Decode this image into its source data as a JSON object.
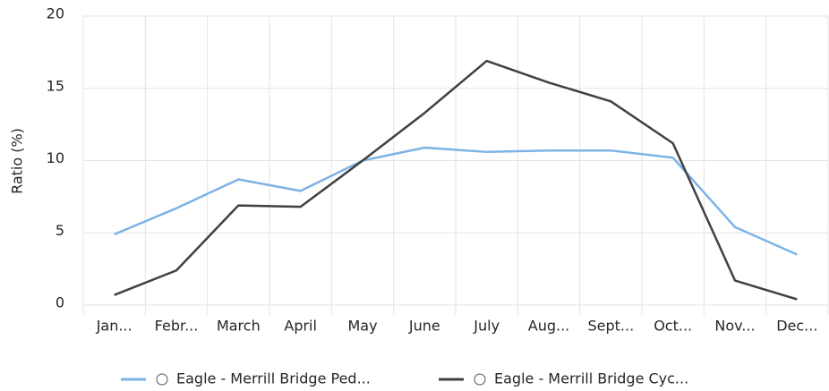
{
  "chart_data": {
    "type": "line",
    "ylabel": "Ratio (%)",
    "categories": [
      "Jan...",
      "Febr...",
      "March",
      "April",
      "May",
      "June",
      "July",
      "Aug...",
      "Sept...",
      "Oct...",
      "Nov...",
      "Dec..."
    ],
    "series": [
      {
        "name": "Eagle - Merrill Bridge Ped...",
        "color": "#7cb3e6",
        "values": [
          4.9,
          6.7,
          8.7,
          7.9,
          10.0,
          10.9,
          10.6,
          10.7,
          10.7,
          10.2,
          5.4,
          3.5
        ]
      },
      {
        "name": "Eagle - Merrill Bridge Cyc...",
        "color": "#404040",
        "values": [
          0.7,
          2.4,
          6.9,
          6.8,
          10.0,
          13.3,
          16.9,
          15.4,
          14.1,
          11.2,
          1.7,
          0.4
        ]
      }
    ],
    "ylim": [
      0,
      20
    ],
    "yticks": [
      0,
      5,
      10,
      15,
      20
    ],
    "grid": true,
    "legend": "bottom"
  }
}
